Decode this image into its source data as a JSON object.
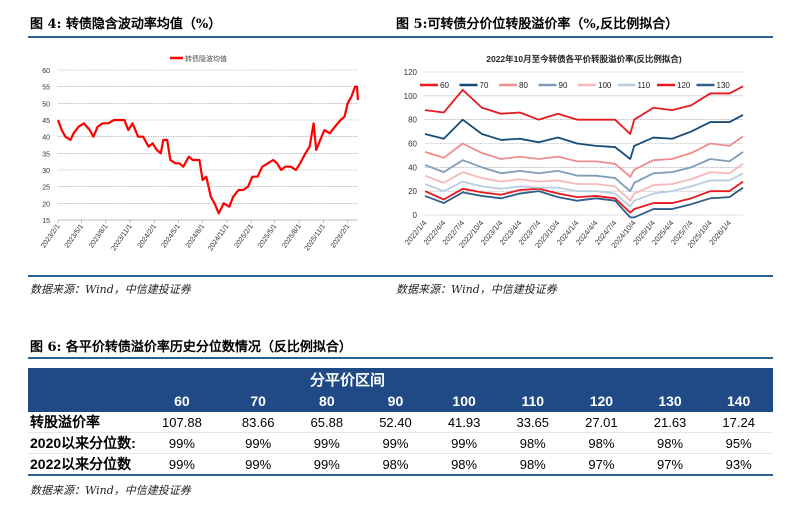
{
  "fig4": {
    "title": "图 4:  转债隐含波动率均值（%）",
    "source": "数据来源：Wind，中信建投证券",
    "chart_data": {
      "type": "line",
      "title": "",
      "legend_position": "top",
      "grid": true,
      "ylim": [
        15,
        60
      ],
      "yticks": [
        15,
        20,
        25,
        30,
        35,
        40,
        45,
        50,
        55,
        60
      ],
      "xticks": [
        "2023/2/1",
        "2023/5/1",
        "2023/8/1",
        "2023/11/1",
        "2024/2/1",
        "2024/5/1",
        "2024/8/1",
        "2024/11/1",
        "2025/2/1",
        "2025/5/1",
        "2025/8/1",
        "2025/11/1",
        "2026/2/1"
      ],
      "series": [
        {
          "name": "转债隐波均值",
          "color": "#ff0000",
          "points": [
            [
              "2023/2/1",
              45
            ],
            [
              "2023/2/15",
              42
            ],
            [
              "2023/3/1",
              40
            ],
            [
              "2023/3/20",
              39
            ],
            [
              "2023/4/1",
              41
            ],
            [
              "2023/4/20",
              43
            ],
            [
              "2023/5/10",
              44
            ],
            [
              "2023/6/1",
              42
            ],
            [
              "2023/6/15",
              40
            ],
            [
              "2023/7/1",
              43
            ],
            [
              "2023/7/20",
              44
            ],
            [
              "2023/8/10",
              44
            ],
            [
              "2023/9/1",
              45
            ],
            [
              "2023/9/20",
              45
            ],
            [
              "2023/10/10",
              45
            ],
            [
              "2023/10/25",
              42
            ],
            [
              "2023/11/10",
              44
            ],
            [
              "2023/12/1",
              40
            ],
            [
              "2023/12/20",
              40
            ],
            [
              "2024/1/10",
              37
            ],
            [
              "2024/1/25",
              38
            ],
            [
              "2024/2/10",
              36
            ],
            [
              "2024/2/25",
              35
            ],
            [
              "2024/3/5",
              39
            ],
            [
              "2024/3/20",
              39
            ],
            [
              "2024/4/1",
              33
            ],
            [
              "2024/4/20",
              32
            ],
            [
              "2024/5/5",
              32
            ],
            [
              "2024/5/20",
              31
            ],
            [
              "2024/6/10",
              34
            ],
            [
              "2024/6/25",
              33
            ],
            [
              "2024/7/20",
              33
            ],
            [
              "2024/8/1",
              27
            ],
            [
              "2024/8/15",
              28
            ],
            [
              "2024/9/1",
              22
            ],
            [
              "2024/9/15",
              20
            ],
            [
              "2024/10/1",
              17
            ],
            [
              "2024/10/20",
              20
            ],
            [
              "2024/11/10",
              19
            ],
            [
              "2024/11/25",
              22
            ],
            [
              "2024/12/15",
              24
            ],
            [
              "2025/1/1",
              24
            ],
            [
              "2025/1/20",
              25
            ],
            [
              "2025/2/5",
              28
            ],
            [
              "2025/2/25",
              28
            ],
            [
              "2025/3/15",
              31
            ],
            [
              "2025/4/5",
              32
            ],
            [
              "2025/4/25",
              33
            ],
            [
              "2025/5/10",
              32
            ],
            [
              "2025/5/25",
              30
            ],
            [
              "2025/6/10",
              31
            ],
            [
              "2025/7/1",
              31
            ],
            [
              "2025/7/20",
              30
            ],
            [
              "2025/8/5",
              32
            ],
            [
              "2025/8/25",
              35
            ],
            [
              "2025/9/10",
              37
            ],
            [
              "2025/9/25",
              44
            ],
            [
              "2025/10/5",
              36
            ],
            [
              "2025/10/20",
              39
            ],
            [
              "2025/11/5",
              42
            ],
            [
              "2025/11/25",
              41
            ],
            [
              "2025/12/15",
              43
            ],
            [
              "2026/1/5",
              45
            ],
            [
              "2026/1/20",
              46
            ],
            [
              "2026/2/1",
              50
            ],
            [
              "2026/2/15",
              52
            ],
            [
              "2026/3/1",
              55
            ],
            [
              "2026/3/8",
              55
            ],
            [
              "2026/3/12",
              51
            ]
          ]
        }
      ]
    }
  },
  "fig5": {
    "title": "图 5:可转债分价位转股溢价率（%,反比例拟合）",
    "source": "数据来源：Wind，中信建投证券",
    "chart_data": {
      "type": "line",
      "title": "2022年10月至今转债各平价转股溢价率(反比例拟合)",
      "legend_position": "top",
      "grid": true,
      "ylim": [
        0,
        120
      ],
      "yticks": [
        0,
        20,
        40,
        60,
        80,
        100,
        120
      ],
      "xticks": [
        "2022/1/4",
        "2022/4/4",
        "2022/7/4",
        "2022/10/4",
        "2023/1/4",
        "2023/4/4",
        "2023/7/4",
        "2023/10/4",
        "2024/1/4",
        "2024/4/4",
        "2024/7/4",
        "2024/10/4",
        "2025/1/4",
        "2025/4/4",
        "2025/7/4",
        "2025/10/4",
        "2026/1/4"
      ],
      "x": [
        "2022/1/4",
        "2022/4/4",
        "2022/7/4",
        "2022/10/4",
        "2023/1/4",
        "2023/4/4",
        "2023/7/4",
        "2023/10/4",
        "2024/1/4",
        "2024/4/4",
        "2024/7/4",
        "2024/9/15",
        "2024/10/4",
        "2025/1/4",
        "2025/4/4",
        "2025/7/4",
        "2025/10/4",
        "2026/1/4",
        "2026/3/10"
      ],
      "series": [
        {
          "name": "60",
          "color": "#e8191f",
          "values": [
            88,
            86,
            105,
            90,
            85,
            86,
            80,
            85,
            80,
            80,
            80,
            68,
            80,
            90,
            88,
            92,
            102,
            102,
            108
          ]
        },
        {
          "name": "70",
          "color": "#154c79",
          "values": [
            68,
            64,
            80,
            68,
            63,
            64,
            61,
            65,
            60,
            58,
            57,
            47,
            58,
            65,
            64,
            70,
            78,
            78,
            84
          ]
        },
        {
          "name": "80",
          "color": "#f08c8c",
          "values": [
            53,
            48,
            60,
            52,
            47,
            49,
            47,
            49,
            45,
            45,
            43,
            32,
            38,
            46,
            47,
            52,
            60,
            58,
            66
          ]
        },
        {
          "name": "90",
          "color": "#7f9db9",
          "values": [
            42,
            36,
            46,
            40,
            35,
            37,
            35,
            37,
            33,
            33,
            31,
            20,
            27,
            35,
            36,
            40,
            47,
            45,
            53
          ]
        },
        {
          "name": "100",
          "color": "#f6b9b9",
          "values": [
            33,
            27,
            36,
            31,
            28,
            30,
            28,
            29,
            26,
            26,
            24,
            12,
            18,
            25,
            26,
            30,
            36,
            35,
            43
          ]
        },
        {
          "name": "110",
          "color": "#b9cde0",
          "values": [
            26,
            20,
            28,
            24,
            22,
            24,
            23,
            23,
            20,
            20,
            18,
            7,
            12,
            18,
            20,
            24,
            29,
            29,
            35
          ]
        },
        {
          "name": "120",
          "color": "#e8191f",
          "values": [
            20,
            13,
            22,
            19,
            17,
            21,
            22,
            18,
            15,
            16,
            14,
            2,
            5,
            10,
            10,
            14,
            20,
            20,
            28
          ]
        },
        {
          "name": "130",
          "color": "#2e5e8a",
          "values": [
            16,
            10,
            19,
            16,
            14,
            18,
            20,
            15,
            12,
            14,
            12,
            -2,
            -2,
            5,
            5,
            9,
            14,
            15,
            23
          ]
        }
      ]
    }
  },
  "fig6": {
    "title": "图 6:  各平价转债溢价率历史分位数情况（反比例拟合）",
    "source": "数据来源：Wind，中信建投证券",
    "header_color": "#1f4a85",
    "group_header": "分平价区间",
    "columns": [
      "60",
      "70",
      "80",
      "90",
      "100",
      "110",
      "120",
      "130",
      "140"
    ],
    "rows": [
      {
        "label": "转股溢价率",
        "values": [
          "107.88",
          "83.66",
          "65.88",
          "52.40",
          "41.93",
          "33.65",
          "27.01",
          "21.63",
          "17.24"
        ]
      },
      {
        "label": "2020以来分位数:",
        "values": [
          "99%",
          "99%",
          "99%",
          "99%",
          "99%",
          "98%",
          "98%",
          "98%",
          "95%"
        ]
      },
      {
        "label": "2022以来分位数",
        "values": [
          "99%",
          "99%",
          "99%",
          "98%",
          "98%",
          "98%",
          "97%",
          "97%",
          "93%"
        ]
      }
    ]
  }
}
